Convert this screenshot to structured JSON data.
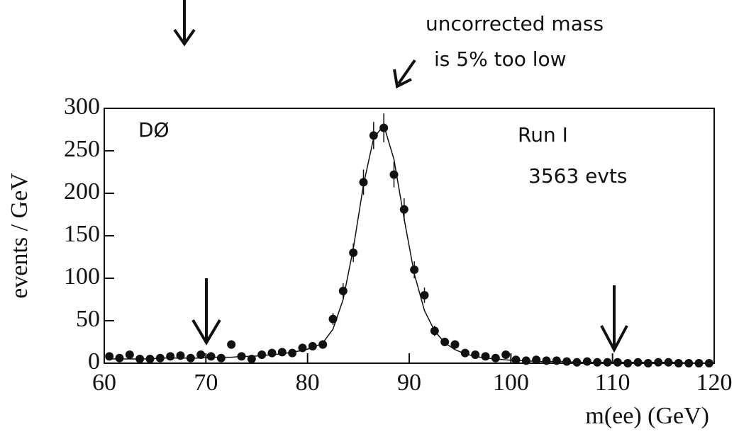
{
  "chart_data": {
    "type": "scatter",
    "xlabel": "m(ee) (GeV)",
    "ylabel": "events / GeV",
    "annotations": [
      "DØ",
      "Run I",
      "3563 evts",
      "uncorrected mass",
      "is 5% too low"
    ],
    "x": [
      60.5,
      61.5,
      62.5,
      63.5,
      64.5,
      65.5,
      66.5,
      67.5,
      68.5,
      69.5,
      70.5,
      71.5,
      72.5,
      73.5,
      74.5,
      75.5,
      76.5,
      77.5,
      78.5,
      79.5,
      80.5,
      81.5,
      82.5,
      83.5,
      84.5,
      85.5,
      86.5,
      87.5,
      88.5,
      89.5,
      90.5,
      91.5,
      92.5,
      93.5,
      94.5,
      95.5,
      96.5,
      97.5,
      98.5,
      99.5,
      100.5,
      101.5,
      102.5,
      103.5,
      104.5,
      105.5,
      106.5,
      107.5,
      108.5,
      109.5,
      110.5,
      111.5,
      112.5,
      113.5,
      114.5,
      115.5,
      116.5,
      117.5,
      118.5,
      119.5
    ],
    "values": [
      8,
      6,
      10,
      5,
      5,
      6,
      8,
      9,
      6,
      10,
      8,
      6,
      22,
      8,
      5,
      10,
      12,
      13,
      12,
      18,
      20,
      22,
      52,
      85,
      130,
      213,
      268,
      277,
      222,
      181,
      110,
      80,
      38,
      25,
      22,
      12,
      10,
      8,
      6,
      10,
      4,
      3,
      4,
      3,
      3,
      2,
      1,
      2,
      1,
      1,
      1,
      0,
      1,
      0,
      1,
      1,
      0,
      0,
      0,
      0
    ],
    "errors": [
      3,
      2,
      3,
      2,
      2,
      2,
      3,
      3,
      2,
      3,
      3,
      2,
      5,
      3,
      2,
      3,
      3,
      4,
      3,
      4,
      4,
      5,
      7,
      9,
      11,
      15,
      16,
      17,
      15,
      13,
      10,
      9,
      6,
      5,
      5,
      3,
      3,
      3,
      2,
      3,
      2,
      2,
      2,
      2,
      2,
      1,
      1,
      1,
      1,
      1,
      1,
      0,
      1,
      0,
      1,
      1,
      0,
      0,
      0,
      0
    ],
    "fit_values": [
      5,
      5,
      5,
      5,
      5,
      6,
      6,
      6,
      6,
      6,
      7,
      7,
      7,
      8,
      8,
      9,
      10,
      11,
      13,
      15,
      18,
      24,
      40,
      75,
      135,
      210,
      265,
      280,
      240,
      170,
      105,
      62,
      38,
      24,
      16,
      11,
      8,
      6,
      5,
      4,
      3,
      3,
      2,
      2,
      2,
      2,
      1,
      1,
      1,
      1,
      1,
      1,
      1,
      1,
      1,
      1,
      1,
      0,
      0,
      0
    ],
    "color": "#111111",
    "xlim": [
      60,
      120
    ],
    "xticks": [
      60,
      70,
      80,
      90,
      100,
      110,
      120
    ],
    "ylim": [
      0,
      300
    ],
    "yticks": [
      0,
      50,
      100,
      150,
      200,
      250,
      300
    ]
  }
}
